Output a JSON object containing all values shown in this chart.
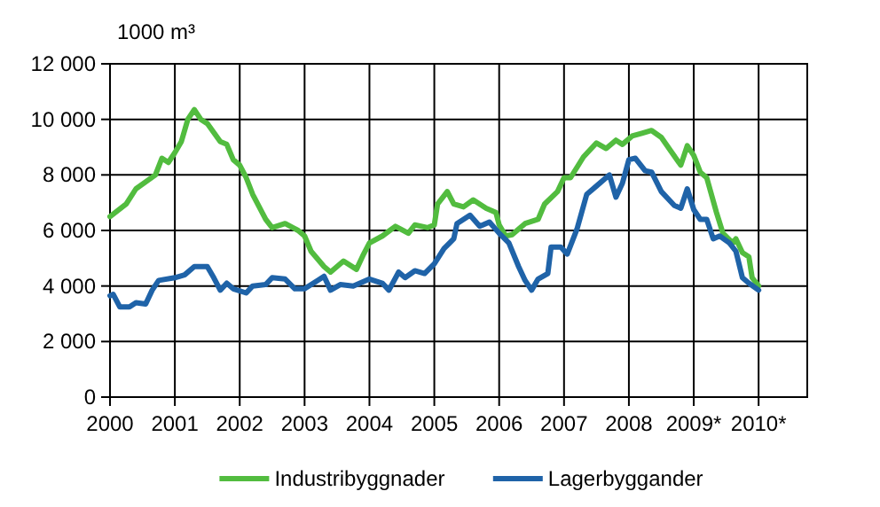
{
  "chart_data": {
    "type": "line",
    "ylabel": "1000 m³",
    "xlim": [
      2000,
      2010.75
    ],
    "xticks": [
      2000,
      2001,
      2002,
      2003,
      2004,
      2005,
      2006,
      2007,
      2008,
      {
        "value": 2009,
        "label": "2009*"
      },
      {
        "value": 2010,
        "label": "2010*"
      }
    ],
    "ylim": [
      0,
      12000
    ],
    "yticks": [
      {
        "value": 0,
        "label": "0"
      },
      {
        "value": 2000,
        "label": "2 000"
      },
      {
        "value": 4000,
        "label": "4 000"
      },
      {
        "value": 6000,
        "label": "6 000"
      },
      {
        "value": 8000,
        "label": "8 000"
      },
      {
        "value": 10000,
        "label": "10 000"
      },
      {
        "value": 12000,
        "label": "12 000"
      }
    ],
    "grid": true,
    "legend": "bottom",
    "marker": "none",
    "line_style": "solid",
    "series": [
      {
        "name": "Industribyggnader",
        "color": "#52bc3f",
        "x": [
          2000,
          2000.25,
          2000.4,
          2000.7,
          2000.8,
          2000.9,
          2001,
          2001.1,
          2001.2,
          2001.3,
          2001.4,
          2001.5,
          2001.7,
          2001.8,
          2001.9,
          2002,
          2002.1,
          2002.2,
          2002.3,
          2002.4,
          2002.5,
          2002.7,
          2002.9,
          2003,
          2003.1,
          2003.3,
          2003.4,
          2003.6,
          2003.8,
          2003.9,
          2004,
          2004.2,
          2004.4,
          2004.6,
          2004.7,
          2004.9,
          2005,
          2005.05,
          2005.2,
          2005.3,
          2005.45,
          2005.6,
          2005.8,
          2005.95,
          2006,
          2006.1,
          2006.2,
          2006.4,
          2006.6,
          2006.7,
          2006.9,
          2007,
          2007.1,
          2007.3,
          2007.5,
          2007.65,
          2007.8,
          2007.9,
          2008.05,
          2008.2,
          2008.35,
          2008.5,
          2008.65,
          2008.8,
          2008.9,
          2009,
          2009.1,
          2009.2,
          2009.35,
          2009.45,
          2009.6,
          2009.65,
          2009.75,
          2009.85,
          2009.9,
          2010
        ],
        "values": [
          6500,
          6950,
          7500,
          8000,
          8600,
          8450,
          8800,
          9200,
          10000,
          10350,
          10000,
          9850,
          9200,
          9100,
          8550,
          8350,
          7900,
          7300,
          6850,
          6400,
          6100,
          6250,
          6000,
          5800,
          5250,
          4700,
          4500,
          4900,
          4600,
          5100,
          5550,
          5800,
          6150,
          5900,
          6200,
          6100,
          6200,
          6950,
          7400,
          6950,
          6850,
          7100,
          6800,
          6650,
          6200,
          5800,
          5850,
          6250,
          6400,
          6950,
          7400,
          7900,
          7900,
          8650,
          9150,
          8950,
          9250,
          9100,
          9400,
          9500,
          9600,
          9350,
          8850,
          8350,
          9050,
          8700,
          8100,
          7900,
          6650,
          5900,
          5550,
          5700,
          5200,
          5050,
          4300,
          4000
        ]
      },
      {
        "name": "Lagerbyggander",
        "color": "#1f63a8",
        "x": [
          2000,
          2000.05,
          2000.15,
          2000.3,
          2000.4,
          2000.55,
          2000.65,
          2000.75,
          2001,
          2001.15,
          2001.3,
          2001.5,
          2001.6,
          2001.7,
          2001.8,
          2001.9,
          2002.1,
          2002.2,
          2002.4,
          2002.5,
          2002.7,
          2002.85,
          2003,
          2003.2,
          2003.3,
          2003.4,
          2003.55,
          2003.75,
          2004,
          2004.2,
          2004.3,
          2004.45,
          2004.55,
          2004.7,
          2004.85,
          2005,
          2005.15,
          2005.3,
          2005.35,
          2005.55,
          2005.7,
          2005.85,
          2006,
          2006.15,
          2006.3,
          2006.4,
          2006.5,
          2006.6,
          2006.75,
          2006.8,
          2006.95,
          2007.05,
          2007.2,
          2007.35,
          2007.5,
          2007.7,
          2007.8,
          2007.9,
          2008,
          2008.1,
          2008.25,
          2008.35,
          2008.5,
          2008.7,
          2008.8,
          2008.9,
          2009,
          2009.1,
          2009.2,
          2009.3,
          2009.4,
          2009.55,
          2009.65,
          2009.75,
          2009.85,
          2010
        ],
        "values": [
          3650,
          3700,
          3250,
          3250,
          3400,
          3350,
          3850,
          4200,
          4300,
          4400,
          4700,
          4700,
          4300,
          3850,
          4100,
          3900,
          3750,
          4000,
          4050,
          4300,
          4250,
          3900,
          3900,
          4200,
          4350,
          3850,
          4050,
          4000,
          4250,
          4100,
          3850,
          4500,
          4300,
          4550,
          4450,
          4800,
          5350,
          5700,
          6250,
          6550,
          6150,
          6300,
          5900,
          5550,
          4700,
          4200,
          3850,
          4250,
          4450,
          5400,
          5400,
          5150,
          6050,
          7300,
          7600,
          8000,
          7200,
          7700,
          8550,
          8600,
          8150,
          8100,
          7400,
          6900,
          6800,
          7500,
          6750,
          6400,
          6400,
          5700,
          5800,
          5550,
          5250,
          4300,
          4100,
          3850
        ]
      }
    ]
  }
}
